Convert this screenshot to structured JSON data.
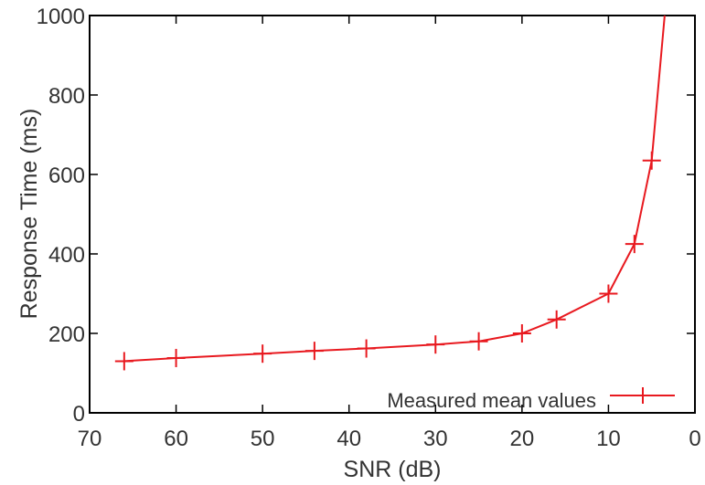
{
  "chart_data": {
    "type": "line",
    "xlabel": "SNR (dB)",
    "ylabel": "Response Time (ms)",
    "xlim": [
      70,
      0
    ],
    "ylim": [
      0,
      1000
    ],
    "x_reversed": true,
    "x_ticks": [
      "70",
      "60",
      "50",
      "40",
      "30",
      "20",
      "10",
      "0"
    ],
    "y_ticks": [
      "0",
      "200",
      "400",
      "600",
      "800",
      "1000"
    ],
    "grid": false,
    "legend_position": "bottom-right",
    "series": [
      {
        "name": "Measured mean values",
        "color": "#e8191f",
        "marker": "plus",
        "points": [
          {
            "x": 66,
            "y": 130
          },
          {
            "x": 60,
            "y": 138
          },
          {
            "x": 50,
            "y": 149
          },
          {
            "x": 44,
            "y": 156
          },
          {
            "x": 38,
            "y": 162
          },
          {
            "x": 30,
            "y": 172
          },
          {
            "x": 25,
            "y": 180
          },
          {
            "x": 20,
            "y": 200
          },
          {
            "x": 16,
            "y": 235
          },
          {
            "x": 10,
            "y": 300
          },
          {
            "x": 7,
            "y": 425
          },
          {
            "x": 5,
            "y": 635
          }
        ],
        "line_end": {
          "x": 3.5,
          "y": 1000
        }
      }
    ]
  }
}
